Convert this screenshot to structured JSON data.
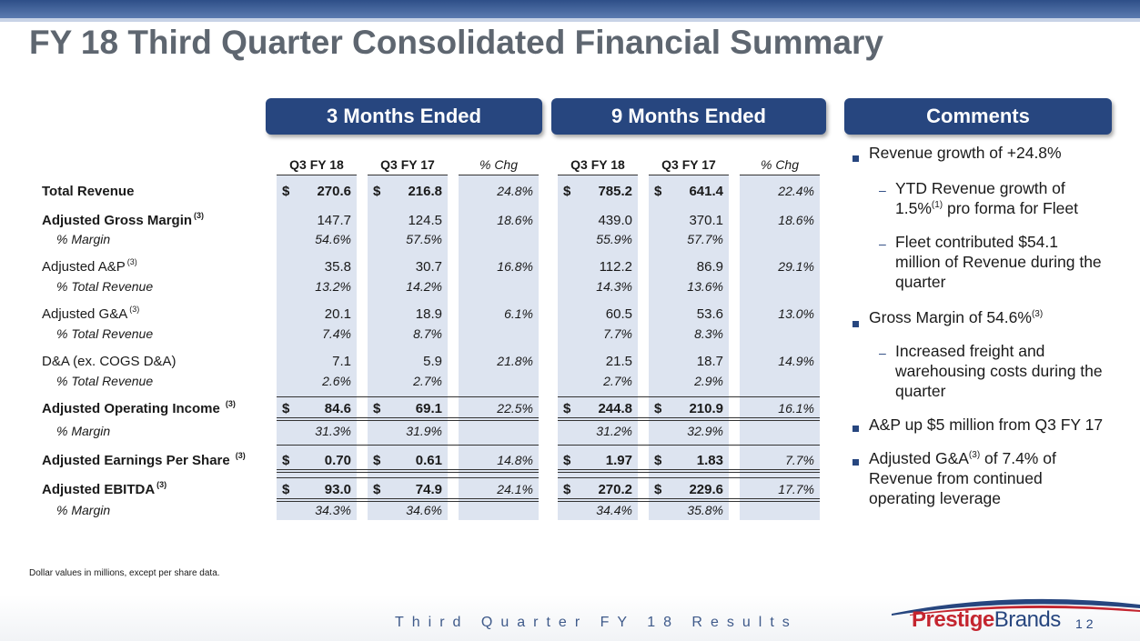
{
  "title": "FY 18 Third Quarter Consolidated Financial Summary",
  "headers": {
    "three_months": "3 Months Ended",
    "nine_months": "9 Months Ended",
    "comments": "Comments"
  },
  "columns": [
    "Q3 FY 18",
    "Q3 FY 17",
    "% Chg",
    "Q3 FY 18",
    "Q3 FY 17",
    "% Chg"
  ],
  "rows": {
    "total_revenue": {
      "label": "Total Revenue",
      "vals": [
        "270.6",
        "216.8",
        "24.8%",
        "785.2",
        "641.4",
        "22.4%"
      ]
    },
    "gross_margin": {
      "label": "Adjusted Gross Margin",
      "sup": "(3)",
      "vals": [
        "147.7",
        "124.5",
        "18.6%",
        "439.0",
        "370.1",
        "18.6%"
      ]
    },
    "gm_pct": {
      "label": "% Margin",
      "vals": [
        "54.6%",
        "57.5%",
        "",
        "55.9%",
        "57.7%",
        ""
      ]
    },
    "ap": {
      "label": "Adjusted A&P",
      "sup": "(3)",
      "vals": [
        "35.8",
        "30.7",
        "16.8%",
        "112.2",
        "86.9",
        "29.1%"
      ]
    },
    "ap_pct": {
      "label": "% Total Revenue",
      "vals": [
        "13.2%",
        "14.2%",
        "",
        "14.3%",
        "13.6%",
        ""
      ]
    },
    "ga": {
      "label": "Adjusted G&A",
      "sup": "(3)",
      "vals": [
        "20.1",
        "18.9",
        "6.1%",
        "60.5",
        "53.6",
        "13.0%"
      ]
    },
    "ga_pct": {
      "label": "% Total Revenue",
      "vals": [
        "7.4%",
        "8.7%",
        "",
        "7.7%",
        "8.3%",
        ""
      ]
    },
    "da": {
      "label": "D&A (ex. COGS D&A)",
      "vals": [
        "7.1",
        "5.9",
        "21.8%",
        "21.5",
        "18.7",
        "14.9%"
      ]
    },
    "da_pct": {
      "label": "% Total Revenue",
      "vals": [
        "2.6%",
        "2.7%",
        "",
        "2.7%",
        "2.9%",
        ""
      ]
    },
    "op_income": {
      "label": "Adjusted Operating Income",
      "sup": "(3)",
      "vals": [
        "84.6",
        "69.1",
        "22.5%",
        "244.8",
        "210.9",
        "16.1%"
      ]
    },
    "op_pct": {
      "label": "% Margin",
      "vals": [
        "31.3%",
        "31.9%",
        "",
        "31.2%",
        "32.9%",
        ""
      ]
    },
    "eps": {
      "label": "Adjusted Earnings Per Share",
      "sup": "(3)",
      "vals": [
        "0.70",
        "0.61",
        "14.8%",
        "1.97",
        "1.83",
        "7.7%"
      ]
    },
    "ebitda": {
      "label": "Adjusted EBITDA",
      "sup": "(3)",
      "vals": [
        "93.0",
        "74.9",
        "24.1%",
        "270.2",
        "229.6",
        "17.7%"
      ]
    },
    "ebitda_pct": {
      "label": "% Margin",
      "vals": [
        "34.3%",
        "34.6%",
        "",
        "34.4%",
        "35.8%",
        ""
      ]
    }
  },
  "dollar_sign": "$",
  "comments": {
    "c1": "Revenue growth of +24.8%",
    "c1a_1": "YTD Revenue growth of",
    "c1a_2a": "1.5%",
    "c1a_sup": "(1)",
    "c1a_2b": " pro forma for Fleet",
    "c1b_1": "Fleet contributed $54.1",
    "c1b_2": "million of Revenue during the",
    "c1b_3": "quarter",
    "c2a": "Gross Margin of 54.6%",
    "c2_sup": "(3)",
    "c2a_1": "Increased freight and",
    "c2a_2": "warehousing costs during the",
    "c2a_3": "quarter",
    "c3": "A&P up $5 million from Q3 FY 17",
    "c4_a": "Adjusted G&A",
    "c4_sup": "(3)",
    "c4_b": " of 7.4% of",
    "c4_2": "Revenue from continued",
    "c4_3": "operating leverage",
    "dash": "–"
  },
  "footnote": "Dollar values in millions, except per share data.",
  "footer": {
    "tagline": "Third Quarter FY 18 Results",
    "logo_a": "Prestige",
    "logo_b": "Brands",
    "page": "12"
  }
}
